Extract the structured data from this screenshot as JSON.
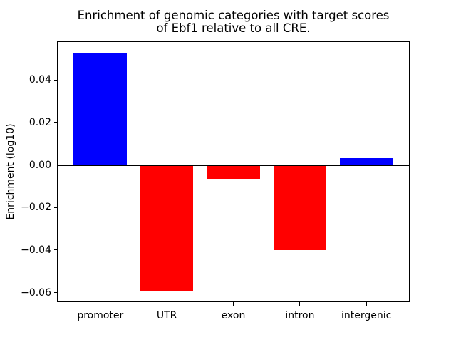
{
  "figure": {
    "title_line1": "Enrichment of genomic categories with target scores",
    "title_line2": "of Ebf1 relative to all CRE.",
    "background_color": "#ffffff",
    "axis_color": "#000000"
  },
  "chart_data": {
    "type": "bar",
    "title": "Enrichment of genomic categories with target scores of Ebf1 relative to all CRE.",
    "xlabel": "",
    "ylabel": "Enrichment (log10)",
    "categories": [
      "promoter",
      "UTR",
      "exon",
      "intron",
      "intergenic"
    ],
    "values": [
      0.0525,
      -0.059,
      -0.0065,
      -0.04,
      0.0033
    ],
    "bar_colors": [
      "#0000ff",
      "#ff0000",
      "#ff0000",
      "#ff0000",
      "#0000ff"
    ],
    "positive_color": "#0000ff",
    "negative_color": "#ff0000",
    "ylim": [
      -0.0645,
      0.0582
    ],
    "xlim": [
      -0.64,
      4.64
    ],
    "yticks": [
      0.04,
      0.02,
      0.0,
      -0.02,
      -0.04,
      -0.06
    ],
    "ytick_labels": [
      "0.04",
      "0.02",
      "0.00",
      "−0.02",
      "−0.04",
      "−0.06"
    ],
    "bar_width_fraction": 0.8,
    "grid": false,
    "zero_line": true,
    "legend_position": "none"
  }
}
